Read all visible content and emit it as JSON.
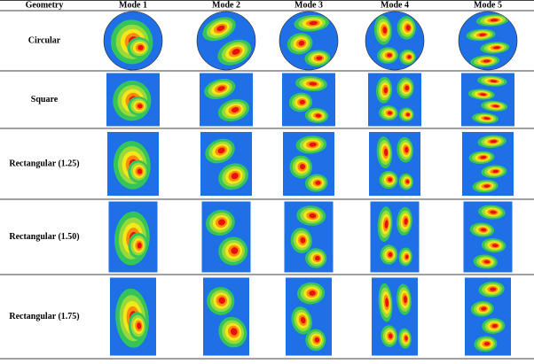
{
  "table": {
    "header": [
      "Geometry",
      "Mode 1",
      "Mode 2",
      "Mode 3",
      "Mode 4",
      "Mode 5"
    ],
    "rows": [
      "Circular",
      "Square",
      "Rectangular (1.25)",
      "Rectangular (1.50)",
      "Rectangular (1.75)"
    ]
  }
}
